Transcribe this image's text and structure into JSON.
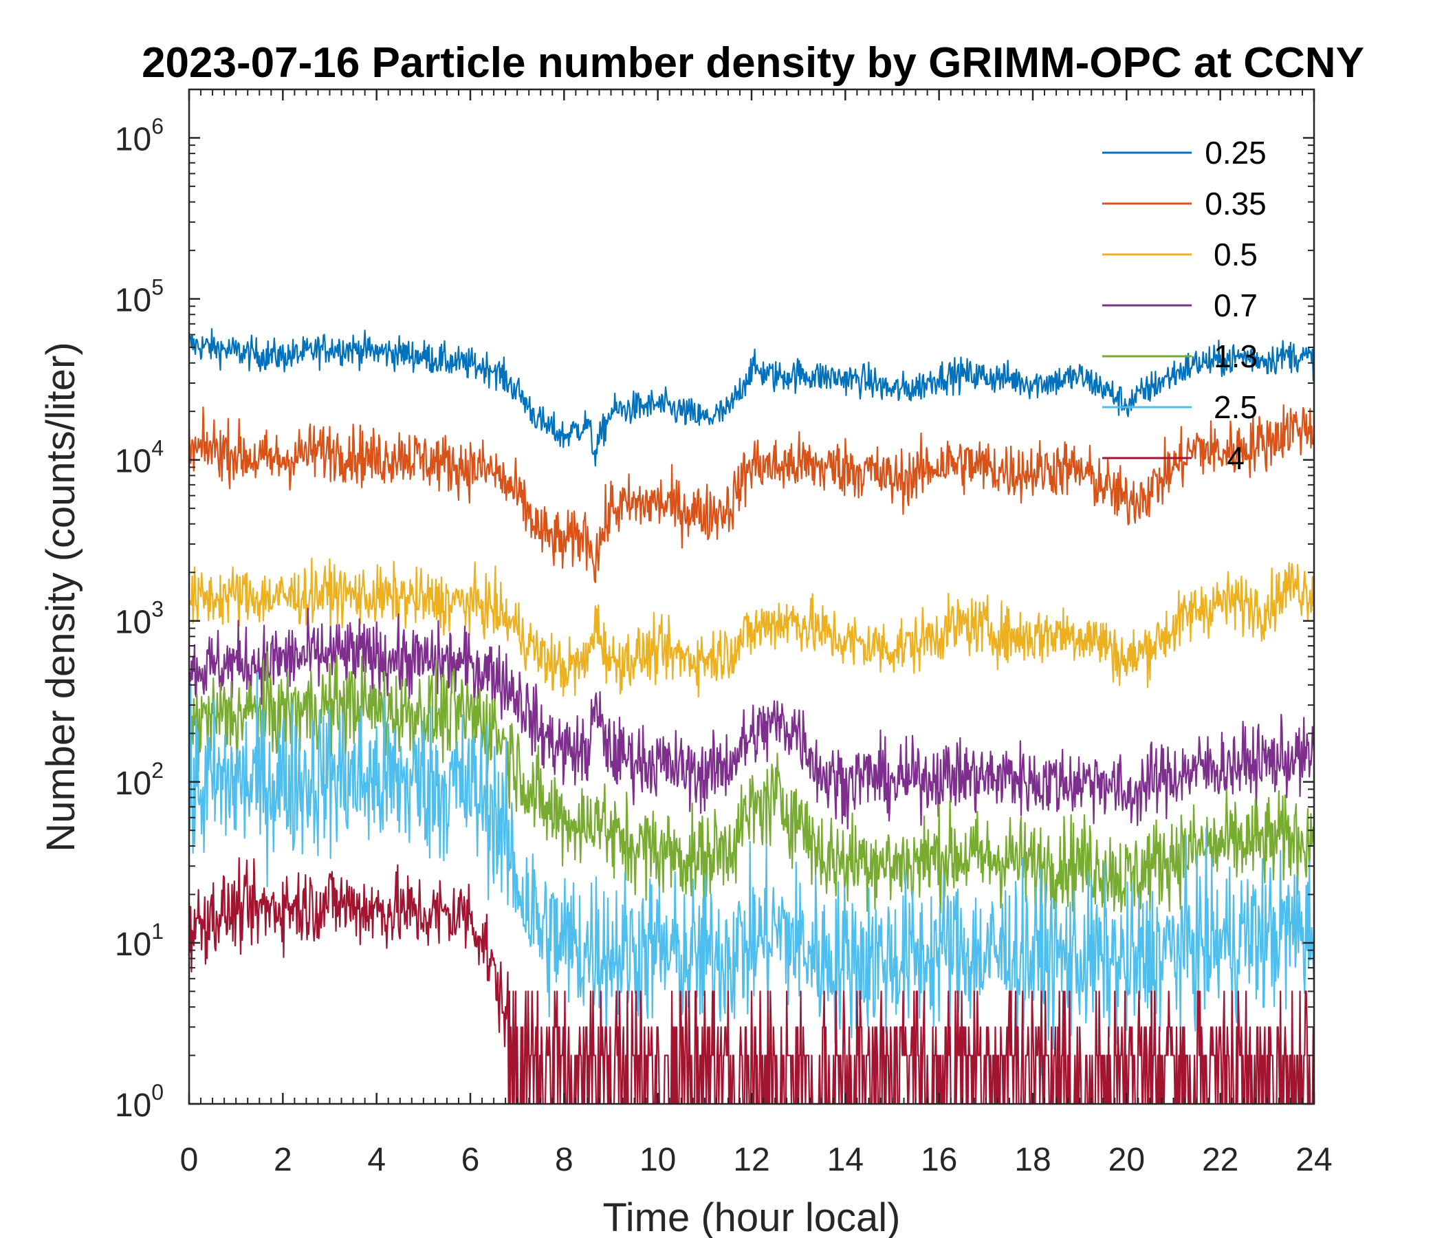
{
  "chart_data": {
    "type": "line",
    "title": "2023-07-16 Particle number density by GRIMM-OPC at CCNY",
    "xlabel": "Time (hour local)",
    "ylabel": "Number density (counts/liter)",
    "xlim": [
      0,
      24
    ],
    "ylim": [
      1,
      2000000
    ],
    "yscale": "log",
    "x_ticks": [
      0,
      2,
      4,
      6,
      8,
      10,
      12,
      14,
      16,
      18,
      20,
      22,
      24
    ],
    "x_tick_labels": [
      "0",
      "2",
      "4",
      "6",
      "8",
      "10",
      "12",
      "14",
      "16",
      "18",
      "20",
      "22",
      "24"
    ],
    "y_ticks": [
      {
        "base": "10",
        "exp": "0",
        "value": 1
      },
      {
        "base": "10",
        "exp": "1",
        "value": 10
      },
      {
        "base": "10",
        "exp": "2",
        "value": 100
      },
      {
        "base": "10",
        "exp": "3",
        "value": 1000
      },
      {
        "base": "10",
        "exp": "4",
        "value": 10000
      },
      {
        "base": "10",
        "exp": "5",
        "value": 100000
      },
      {
        "base": "10",
        "exp": "6",
        "value": 1000000
      }
    ],
    "legend_position": "top-right",
    "series": [
      {
        "name": "0.25",
        "color": "#0072BD",
        "noise": 0.05,
        "x": [
          0,
          0.5,
          1,
          1.5,
          2,
          2.5,
          3,
          3.5,
          4,
          4.5,
          5,
          5.5,
          6,
          6.5,
          7,
          7.5,
          8,
          8.5,
          8.65,
          9,
          9.5,
          10,
          10.5,
          11,
          11.5,
          12,
          12.5,
          13,
          13.5,
          14,
          14.5,
          15,
          15.5,
          16,
          16.5,
          17,
          17.5,
          18,
          18.5,
          19,
          19.5,
          20,
          20.5,
          21,
          21.5,
          22,
          22.5,
          23,
          23.5,
          24
        ],
        "y": [
          52000,
          50000,
          47000,
          45000,
          44000,
          46000,
          50000,
          49000,
          47000,
          46000,
          44000,
          41000,
          39000,
          37000,
          27000,
          17000,
          14000,
          17000,
          11000,
          20000,
          21000,
          22000,
          20000,
          18000,
          20000,
          37000,
          33000,
          34000,
          33000,
          32000,
          31000,
          27000,
          28000,
          33000,
          34000,
          33000,
          32000,
          30000,
          31000,
          33000,
          28000,
          22000,
          28000,
          34000,
          40000,
          41000,
          44000,
          42000,
          45000,
          42000
        ]
      },
      {
        "name": "0.35",
        "color": "#D95319",
        "noise": 0.09,
        "x": [
          0,
          0.5,
          1,
          1.5,
          2,
          2.5,
          3,
          3.5,
          4,
          4.5,
          5,
          5.5,
          6,
          6.5,
          7,
          7.5,
          8,
          8.5,
          8.65,
          9,
          9.5,
          10,
          10.5,
          11,
          11.5,
          12,
          12.5,
          13,
          13.5,
          14,
          14.5,
          15,
          15.5,
          16,
          16.5,
          17,
          17.5,
          18,
          18.5,
          19,
          19.5,
          20,
          20.5,
          21,
          21.5,
          22,
          22.5,
          23,
          23.5,
          24
        ],
        "y": [
          11000,
          12000,
          11000,
          10000,
          10000,
          11000,
          11500,
          11000,
          10000,
          11000,
          10000,
          9500,
          9000,
          8500,
          6000,
          3500,
          3000,
          3500,
          2400,
          5000,
          5200,
          5500,
          5000,
          4600,
          5000,
          9500,
          9000,
          9500,
          9000,
          9000,
          8500,
          7500,
          8000,
          9500,
          9500,
          9000,
          8500,
          8500,
          9000,
          8500,
          7000,
          5500,
          6500,
          9000,
          12000,
          11000,
          12000,
          13000,
          16000,
          16000
        ]
      },
      {
        "name": "0.5",
        "color": "#EDB120",
        "noise": 0.09,
        "x": [
          0,
          0.5,
          1,
          1.5,
          2,
          2.5,
          3,
          3.5,
          4,
          4.5,
          5,
          5.5,
          6,
          6.5,
          7,
          7.5,
          8,
          8.5,
          8.65,
          9,
          9.5,
          10,
          10.5,
          11,
          11.5,
          12,
          12.5,
          13,
          13.5,
          14,
          14.5,
          15,
          15.5,
          16,
          16.5,
          17,
          17.5,
          18,
          18.5,
          19,
          19.5,
          20,
          20.5,
          21,
          21.5,
          22,
          22.5,
          23,
          23.5,
          24
        ],
        "y": [
          1350,
          1400,
          1450,
          1400,
          1400,
          1450,
          1500,
          1450,
          1400,
          1400,
          1350,
          1300,
          1300,
          1200,
          900,
          600,
          500,
          550,
          1000,
          550,
          600,
          650,
          600,
          580,
          650,
          850,
          1000,
          1000,
          850,
          750,
          700,
          680,
          720,
          850,
          950,
          900,
          800,
          800,
          850,
          820,
          750,
          550,
          700,
          900,
          1200,
          1300,
          1300,
          1200,
          1700,
          1500
        ]
      },
      {
        "name": "0.7",
        "color": "#7E2F8E",
        "noise": 0.11,
        "x": [
          0,
          0.5,
          1,
          1.5,
          2,
          2.5,
          3,
          3.5,
          4,
          4.5,
          5,
          5.5,
          6,
          6.5,
          7,
          7.5,
          8,
          8.5,
          8.65,
          9,
          9.5,
          10,
          10.5,
          11,
          11.5,
          12,
          12.5,
          13,
          13.5,
          14,
          14.5,
          15,
          15.5,
          16,
          16.5,
          17,
          17.5,
          18,
          18.5,
          19,
          19.5,
          20,
          20.5,
          21,
          21.5,
          22,
          22.5,
          23,
          23.5,
          24
        ],
        "y": [
          500,
          520,
          550,
          550,
          580,
          600,
          620,
          620,
          600,
          580,
          560,
          550,
          530,
          480,
          350,
          200,
          160,
          150,
          280,
          150,
          140,
          130,
          120,
          110,
          130,
          190,
          230,
          210,
          110,
          100,
          110,
          100,
          105,
          110,
          110,
          105,
          110,
          100,
          100,
          100,
          105,
          80,
          100,
          110,
          120,
          125,
          130,
          135,
          140,
          140
        ]
      },
      {
        "name": "1.3",
        "color": "#77AC30",
        "noise": 0.14,
        "x": [
          0,
          0.5,
          1,
          1.5,
          2,
          2.5,
          3,
          3.5,
          4,
          4.5,
          5,
          5.5,
          6,
          6.5,
          7,
          7.5,
          8,
          8.5,
          8.65,
          9,
          9.5,
          10,
          10.5,
          11,
          11.5,
          12,
          12.5,
          13,
          13.5,
          14,
          14.5,
          15,
          15.5,
          16,
          16.5,
          17,
          17.5,
          18,
          18.5,
          19,
          19.5,
          20,
          20.5,
          21,
          21.5,
          22,
          22.5,
          23,
          23.5,
          24
        ],
        "y": [
          220,
          250,
          260,
          270,
          270,
          280,
          300,
          300,
          280,
          270,
          270,
          260,
          260,
          220,
          130,
          70,
          60,
          50,
          70,
          45,
          40,
          38,
          35,
          33,
          40,
          65,
          80,
          60,
          35,
          32,
          34,
          30,
          32,
          35,
          35,
          33,
          34,
          30,
          32,
          32,
          30,
          25,
          30,
          35,
          38,
          40,
          42,
          42,
          45,
          45
        ]
      },
      {
        "name": "2.5",
        "color": "#4DBEEE",
        "noise": 0.24,
        "x": [
          0,
          0.5,
          1,
          1.5,
          2,
          2.5,
          3,
          3.5,
          4,
          4.5,
          5,
          5.5,
          6,
          6.5,
          7,
          7.5,
          8,
          8.5,
          8.65,
          9,
          9.5,
          10,
          10.5,
          11,
          11.5,
          12,
          12.5,
          13,
          13.5,
          14,
          14.5,
          15,
          15.5,
          16,
          16.5,
          17,
          17.5,
          18,
          18.5,
          19,
          19.5,
          20,
          20.5,
          21,
          21.5,
          22,
          22.5,
          23,
          23.5,
          24
        ],
        "y": [
          85,
          95,
          100,
          100,
          100,
          105,
          110,
          105,
          100,
          100,
          100,
          95,
          90,
          70,
          25,
          12,
          10,
          9,
          10,
          9,
          9,
          9,
          8,
          8,
          9,
          10,
          12,
          10,
          8,
          8,
          8,
          8,
          8,
          9,
          9,
          8,
          9,
          8,
          8,
          8,
          8,
          7,
          8,
          9,
          10,
          10,
          11,
          11,
          12,
          12
        ]
      },
      {
        "name": "4",
        "color": "#A2142F",
        "noise": 0.12,
        "x": [
          0,
          0.5,
          1,
          1.5,
          2,
          2.5,
          3,
          3.5,
          4,
          4.5,
          5,
          5.5,
          6,
          6.3,
          6.6,
          7
        ],
        "y": [
          12,
          15,
          16,
          16,
          17,
          17,
          18,
          17,
          16,
          16,
          15,
          15,
          15,
          10,
          5,
          2.5
        ]
      }
    ]
  }
}
